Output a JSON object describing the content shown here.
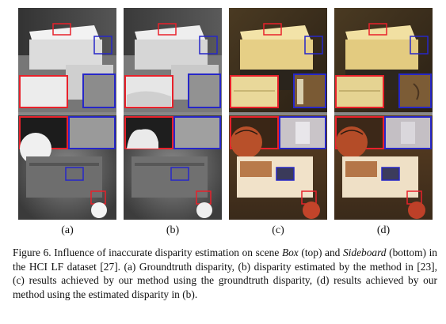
{
  "panels": [
    {
      "label": "(a)",
      "kind": "gt-disparity"
    },
    {
      "label": "(b)",
      "kind": "estimated-disparity"
    },
    {
      "label": "(c)",
      "kind": "result-gt"
    },
    {
      "label": "(d)",
      "kind": "result-estimated"
    }
  ],
  "colors": {
    "red_box": "#e8212b",
    "blue_box": "#2727c8"
  },
  "caption": {
    "prefix": "Figure 6.  Influence of inaccurate disparity estimation on scene ",
    "scene1": "Box",
    "mid1": " (top) and ",
    "scene2": "Sideboard",
    "rest": " (bottom) in the HCI LF dataset [27]. (a) Groundtruth disparity, (b) disparity estimated by the method in [23], (c) results achieved by our method using the groundtruth disparity, (d) results achieved by our method using the estimated disparity in (b)."
  }
}
